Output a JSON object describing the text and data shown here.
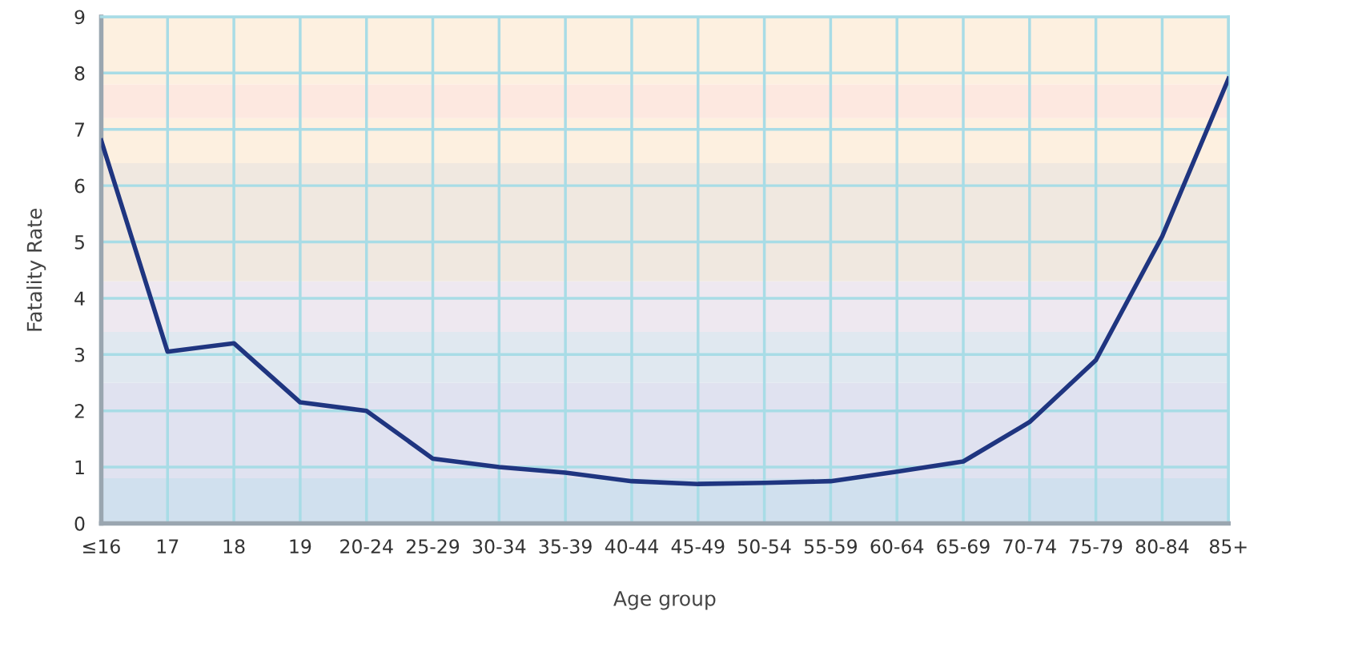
{
  "chart_data": {
    "type": "line",
    "xlabel": "Age group",
    "ylabel": "Fatality Rate",
    "categories": [
      "≤16",
      "17",
      "18",
      "19",
      "20-24",
      "25-29",
      "30-34",
      "35-39",
      "40-44",
      "45-49",
      "50-54",
      "55-59",
      "60-64",
      "65-69",
      "70-74",
      "75-79",
      "80-84",
      "85+"
    ],
    "series": [
      {
        "color": "#1f3580",
        "values": [
          6.8,
          3.05,
          3.2,
          2.15,
          2.0,
          1.15,
          1.0,
          0.9,
          0.75,
          0.7,
          0.72,
          0.75,
          0.92,
          1.1,
          1.8,
          2.9,
          5.1,
          7.9
        ]
      }
    ],
    "ylim": [
      0,
      9
    ],
    "yticks": [
      0,
      1,
      2,
      3,
      4,
      5,
      6,
      7,
      8,
      9
    ],
    "grid": true,
    "marker": "none",
    "line_style": "solid",
    "bands": [
      {
        "axis": "y",
        "from": 0,
        "to": 0.8,
        "color": "#d0e0ee"
      },
      {
        "axis": "y",
        "from": 0.8,
        "to": 2.5,
        "color": "#e0e2f0"
      },
      {
        "axis": "y",
        "from": 2.5,
        "to": 3.4,
        "color": "#e0e8f0"
      },
      {
        "axis": "y",
        "from": 3.4,
        "to": 4.3,
        "color": "#eee8f0"
      },
      {
        "axis": "y",
        "from": 4.3,
        "to": 6.4,
        "color": "#f0e8e0"
      },
      {
        "axis": "y",
        "from": 6.4,
        "to": 7.2,
        "color": "#fdf0e0"
      },
      {
        "axis": "y",
        "from": 7.2,
        "to": 7.8,
        "color": "#fde8e0"
      },
      {
        "axis": "y",
        "from": 7.8,
        "to": 9,
        "color": "#fdf0e0"
      }
    ]
  }
}
